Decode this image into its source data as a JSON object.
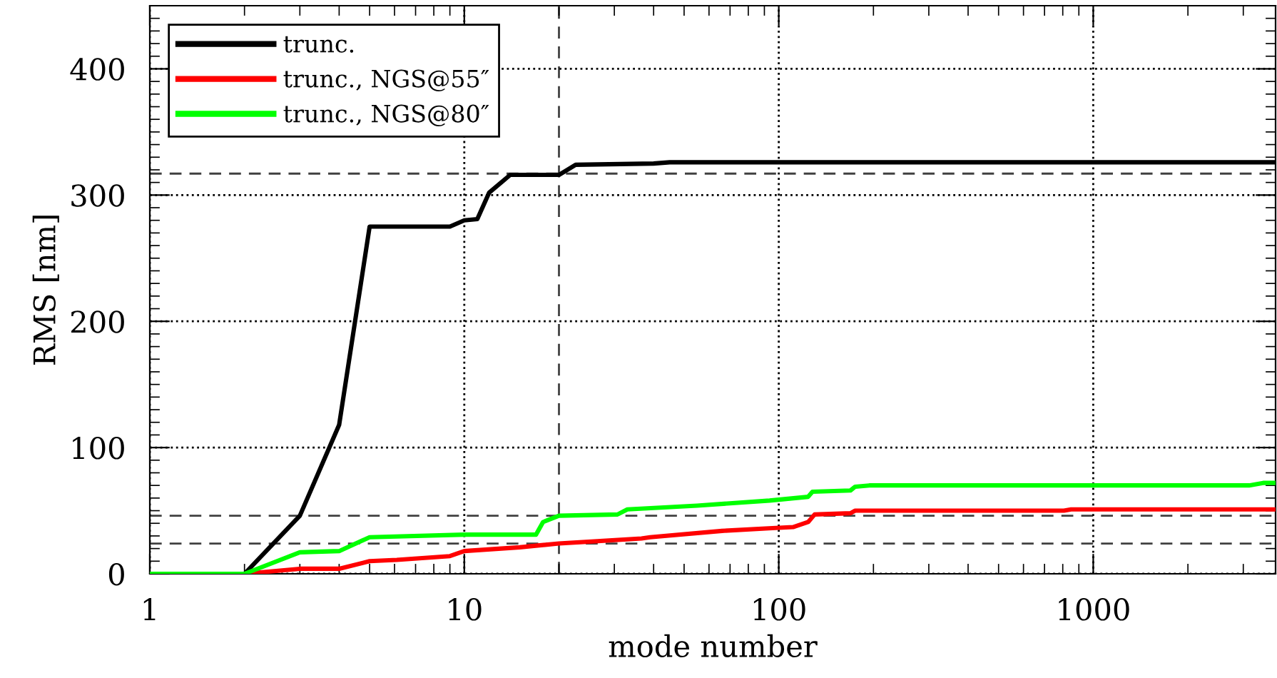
{
  "chart_data": {
    "type": "line",
    "xlabel": "mode number",
    "ylabel": "RMS [nm]",
    "log": "x",
    "xlim": [
      1,
      3800
    ],
    "xticks": [
      1,
      10,
      100,
      1000
    ],
    "ylim": [
      0,
      450
    ],
    "yticks": [
      0,
      100,
      200,
      300,
      400
    ],
    "grid": true,
    "legend": "top left",
    "line_style": "solid",
    "marker": "none",
    "series": [
      {
        "name": "trunc.",
        "color": "#000000",
        "x": [
          1,
          2,
          3,
          4,
          5,
          9,
          10,
          11,
          12,
          14,
          20,
          22.6,
          40,
          45,
          3800
        ],
        "values": [
          0,
          0,
          46,
          118,
          275,
          275,
          280,
          281,
          302,
          316,
          316,
          324,
          325,
          326,
          326
        ]
      },
      {
        "name": "trunc., NGS@55″",
        "color": "#ff0000",
        "x": [
          1,
          2,
          3,
          4,
          5,
          6.1,
          9,
          10,
          15,
          20,
          36.6,
          39,
          66,
          93,
          111,
          124,
          130,
          169,
          175,
          807,
          850,
          3800
        ],
        "values": [
          0,
          0,
          4,
          4,
          10,
          11,
          14,
          18,
          21,
          24,
          28,
          29,
          34,
          36,
          37,
          41,
          47,
          48,
          50,
          50,
          51,
          51
        ]
      },
      {
        "name": "trunc., NGS@80″",
        "color": "#00ff00",
        "x": [
          1,
          2,
          3,
          4,
          5,
          10,
          16.9,
          17.8,
          20,
          30.7,
          33,
          55,
          93.5,
          124,
          128,
          169,
          175,
          194,
          3130,
          3470,
          3800
        ],
        "values": [
          0,
          0,
          17,
          18,
          29,
          31,
          31,
          41,
          46,
          47,
          51,
          54,
          58,
          61,
          65,
          66,
          69,
          70,
          70,
          72,
          72
        ]
      }
    ],
    "ref_lines": [
      {
        "axis": "y",
        "value": 317,
        "color": "#000000",
        "line_style": "dashed"
      },
      {
        "axis": "y",
        "value": 46,
        "color": "#000000",
        "line_style": "dashed"
      },
      {
        "axis": "y",
        "value": 24,
        "color": "#000000",
        "line_style": "dashed"
      },
      {
        "axis": "x",
        "value": 20,
        "color": "#000000",
        "line_style": "dashed"
      }
    ]
  }
}
